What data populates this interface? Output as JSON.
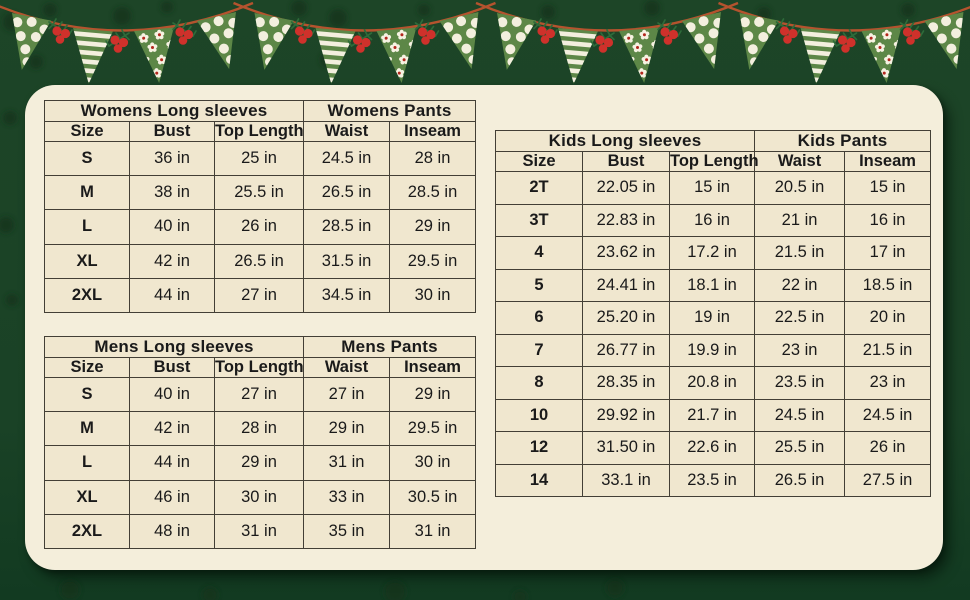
{
  "colors": {
    "background_green": "#1c4427",
    "card_cream": "#f4eedb",
    "cell_cream": "#f0e7cf",
    "table_border": "#433f36",
    "text": "#1a1a1a",
    "pennant_green": "#5d8747",
    "pattern_white": "#f3efde",
    "berry_red": "#cf312b",
    "sprig_green": "#2e6b3a",
    "string_terracotta": "#b5532e",
    "flower_center_red": "#b3271d"
  },
  "decor": {
    "name": "christmas-pennant-garland",
    "swag_count": 4,
    "pennant_patterns": [
      "polka-dot",
      "stripes",
      "flowers",
      "polka-dot"
    ],
    "accents": [
      "holly-berries",
      "pine-sprig"
    ]
  },
  "chart_data": [
    {
      "type": "table",
      "group_headers": [
        {
          "label": "Womens Long sleeves",
          "span": 3
        },
        {
          "label": "Womens Pants",
          "span": 2
        }
      ],
      "columns": [
        "Size",
        "Bust",
        "Top Length",
        "Waist",
        "Inseam"
      ],
      "rows": [
        [
          "S",
          "36 in",
          "25 in",
          "24.5 in",
          "28 in"
        ],
        [
          "M",
          "38 in",
          "25.5 in",
          "26.5 in",
          "28.5 in"
        ],
        [
          "L",
          "40 in",
          "26 in",
          "28.5 in",
          "29 in"
        ],
        [
          "XL",
          "42 in",
          "26.5 in",
          "31.5 in",
          "29.5 in"
        ],
        [
          "2XL",
          "44 in",
          "27 in",
          "34.5 in",
          "30 in"
        ]
      ]
    },
    {
      "type": "table",
      "group_headers": [
        {
          "label": "Mens Long sleeves",
          "span": 3
        },
        {
          "label": "Mens Pants",
          "span": 2
        }
      ],
      "columns": [
        "Size",
        "Bust",
        "Top Length",
        "Waist",
        "Inseam"
      ],
      "rows": [
        [
          "S",
          "40 in",
          "27 in",
          "27 in",
          "29 in"
        ],
        [
          "M",
          "42 in",
          "28 in",
          "29 in",
          "29.5 in"
        ],
        [
          "L",
          "44 in",
          "29 in",
          "31 in",
          "30 in"
        ],
        [
          "XL",
          "46 in",
          "30 in",
          "33 in",
          "30.5 in"
        ],
        [
          "2XL",
          "48 in",
          "31 in",
          "35 in",
          "31 in"
        ]
      ]
    },
    {
      "type": "table",
      "group_headers": [
        {
          "label": "Kids Long sleeves",
          "span": 3
        },
        {
          "label": "Kids Pants",
          "span": 2
        }
      ],
      "columns": [
        "Size",
        "Bust",
        "Top Length",
        "Waist",
        "Inseam"
      ],
      "rows": [
        [
          "2T",
          "22.05 in",
          "15 in",
          "20.5 in",
          "15 in"
        ],
        [
          "3T",
          "22.83 in",
          "16 in",
          "21 in",
          "16 in"
        ],
        [
          "4",
          "23.62 in",
          "17.2 in",
          "21.5 in",
          "17 in"
        ],
        [
          "5",
          "24.41 in",
          "18.1 in",
          "22 in",
          "18.5 in"
        ],
        [
          "6",
          "25.20 in",
          "19 in",
          "22.5 in",
          "20 in"
        ],
        [
          "7",
          "26.77 in",
          "19.9 in",
          "23 in",
          "21.5 in"
        ],
        [
          "8",
          "28.35 in",
          "20.8 in",
          "23.5 in",
          "23 in"
        ],
        [
          "10",
          "29.92 in",
          "21.7 in",
          "24.5 in",
          "24.5 in"
        ],
        [
          "12",
          "31.50 in",
          "22.6 in",
          "25.5 in",
          "26 in"
        ],
        [
          "14",
          "33.1 in",
          "23.5 in",
          "26.5 in",
          "27.5 in"
        ]
      ]
    }
  ]
}
